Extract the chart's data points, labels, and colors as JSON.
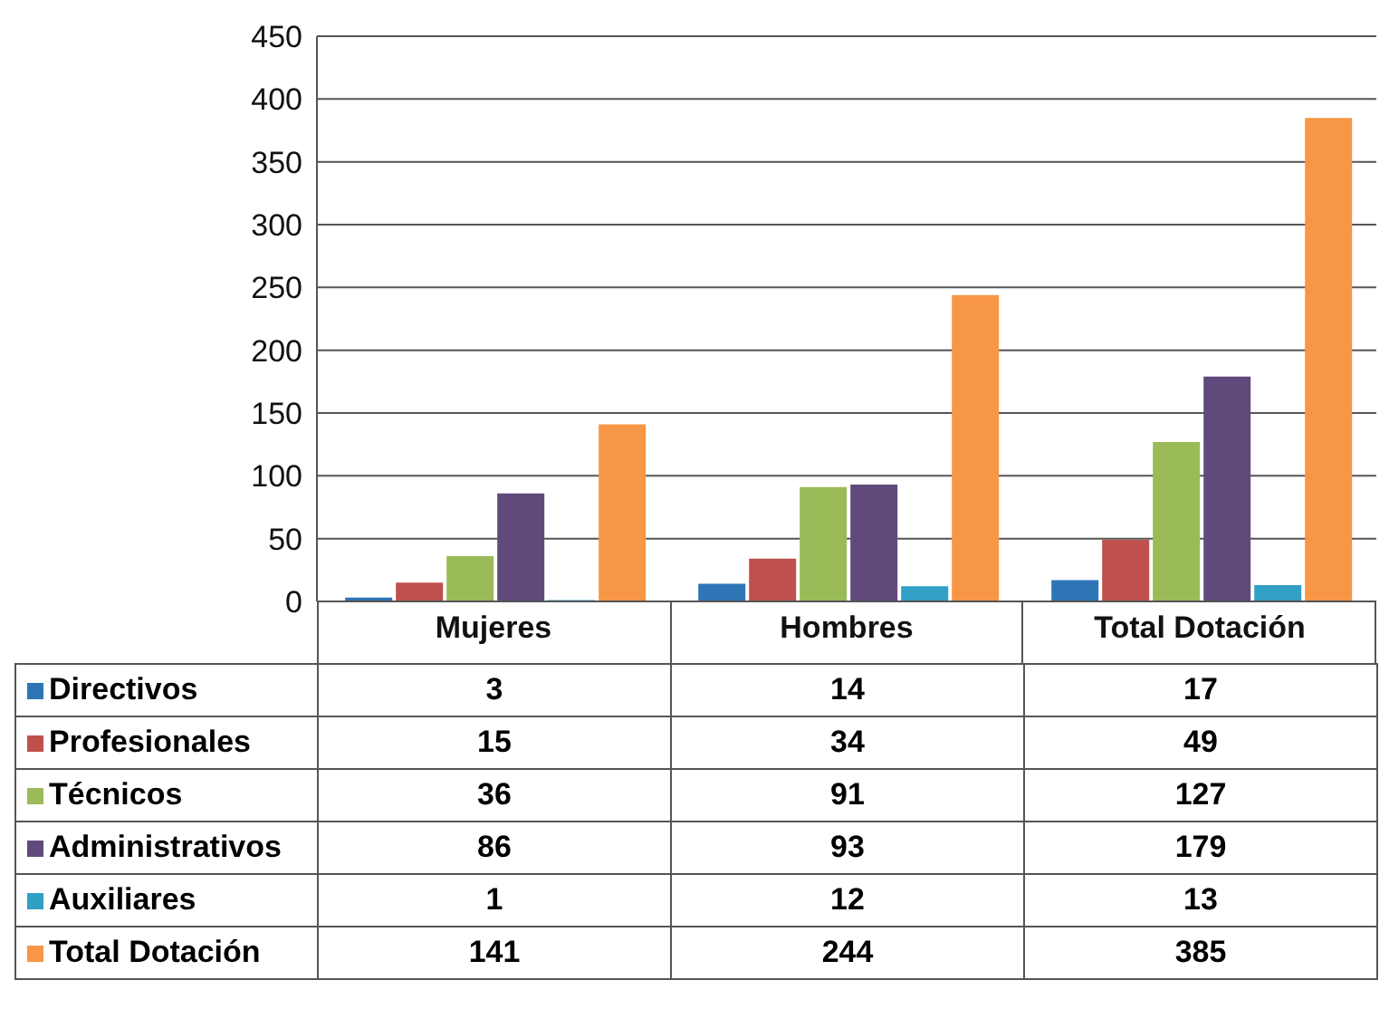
{
  "chart_data": {
    "type": "bar",
    "categories": [
      "Mujeres",
      "Hombres",
      "Total Dotación"
    ],
    "series": [
      {
        "name": "Directivos",
        "color": "#2e75b6",
        "values": [
          3,
          14,
          17
        ]
      },
      {
        "name": "Profesionales",
        "color": "#c0504d",
        "values": [
          15,
          34,
          49
        ]
      },
      {
        "name": "Técnicos",
        "color": "#9bbb59",
        "values": [
          36,
          91,
          127
        ]
      },
      {
        "name": "Administrativos",
        "color": "#604a7b",
        "values": [
          86,
          93,
          179
        ]
      },
      {
        "name": "Auxiliares",
        "color": "#31a0c4",
        "values": [
          1,
          12,
          13
        ]
      },
      {
        "name": "Total Dotación",
        "color": "#f79646",
        "values": [
          141,
          244,
          385
        ]
      }
    ],
    "ylim": [
      0,
      450
    ],
    "yticks": [
      0,
      50,
      100,
      150,
      200,
      250,
      300,
      350,
      400,
      450
    ],
    "grid": "y",
    "legend": "bottom",
    "data_labels": true
  }
}
